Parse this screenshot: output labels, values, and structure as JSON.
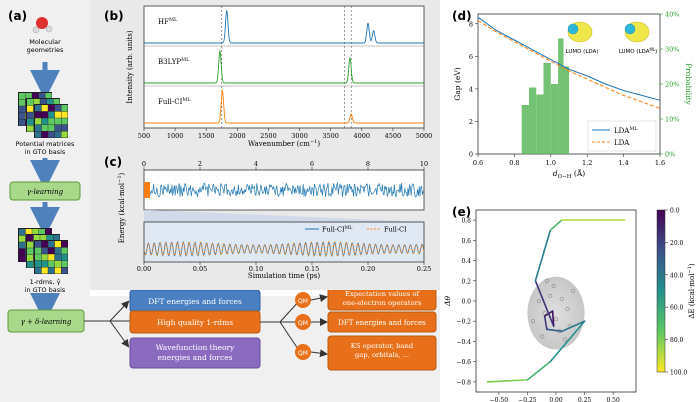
{
  "panel_labels": {
    "a": "(a)",
    "b": "(b)",
    "c": "(c)",
    "d": "(d)",
    "e": "(e)"
  },
  "workflow": {
    "molecular_geometries": "Molecular geometries",
    "potential_matrices": "Potential matrices in GTO basis",
    "gamma_learning": "γ-learning",
    "rdms": "1-rdms, γ̂ in GTO basis",
    "gamma_delta_learning": "γ + δ-learning",
    "dft_energies": "DFT energies and forces",
    "high_quality_rdms": "High quality 1-rdms",
    "wavefunction": "Wavefunction theory energies and forces",
    "qm_label": "QM",
    "expectation_values": "Expectation values of one-electron operators",
    "dft_energies_2": "DFT energies and forces",
    "ks_operator": "KS operator, band gap, orbitals, ..."
  },
  "colors": {
    "blue": "#1f77b4",
    "orange": "#ff7f0e",
    "green": "#2ca02c",
    "box_blue": "#4a7fc1",
    "box_orange": "#e8701a",
    "box_purple": "#8a6bbf",
    "box_green": "#a8d88a",
    "arrow_blue": "#4f81bd",
    "bar_green": "#5cb85c"
  },
  "chart_data": [
    {
      "panel": "b",
      "type": "line",
      "xlabel": "Wavenumber (cm⁻¹)",
      "ylabel": "Intensity (arb. units)",
      "xlim": [
        500,
        5000
      ],
      "x_ticks": [
        "500",
        "1000",
        "1500",
        "2000",
        "2500",
        "3000",
        "3500",
        "4000",
        "4500",
        "5000"
      ],
      "dashed_lines_x": [
        1750,
        3720,
        3830
      ],
      "series": [
        {
          "name": "HF^ML",
          "label_main": "HF",
          "label_sup": "ML",
          "color": "#1f77b4",
          "peaks": [
            {
              "x": 1830,
              "h": 1.0
            },
            {
              "x": 4100,
              "h": 0.62
            },
            {
              "x": 4190,
              "h": 0.38
            }
          ]
        },
        {
          "name": "B3LYP^ML",
          "label_main": "B3LYP",
          "label_sup": "ML",
          "color": "#2ca02c",
          "peaks": [
            {
              "x": 1720,
              "h": 1.0
            },
            {
              "x": 3810,
              "h": 0.78
            }
          ]
        },
        {
          "name": "Full-CI^ML",
          "label_main": "Full-CI",
          "label_sup": "ML",
          "color": "#ff7f0e",
          "peaks": [
            {
              "x": 1760,
              "h": 1.0
            },
            {
              "x": 3830,
              "h": 0.28
            }
          ]
        }
      ]
    },
    {
      "panel": "c",
      "type": "line",
      "xlabel": "Simulation time (ps)",
      "ylabel": "Energy (kcal·mol⁻¹)",
      "top_axis_ticks": [
        "0",
        "2",
        "4",
        "6",
        "8",
        "10"
      ],
      "bottom_axis_ticks": [
        "0.00",
        "0.05",
        "0.10",
        "0.15",
        "0.20",
        "0.25"
      ],
      "xlim_top": [
        0,
        10
      ],
      "xlim_bottom": [
        0,
        0.25
      ],
      "legend": [
        {
          "label_main": "Full-CI",
          "label_sup": "ML",
          "color": "#1f77b4",
          "style": "solid"
        },
        {
          "label_main": "Full-CI",
          "label_sup": "",
          "color": "#ff7f0e",
          "style": "dashed"
        }
      ],
      "oscillation_periods_ps": 0.0052
    },
    {
      "panel": "d",
      "type": "line",
      "xlabel_main": "d",
      "xlabel_sub": "O−H",
      "xlabel_unit": "(Å)",
      "ylabel_left": "Gap (eV)",
      "ylabel_right": "Probability",
      "xlim": [
        0.6,
        1.6
      ],
      "ylim_left": [
        0,
        8.6
      ],
      "ylim_right": [
        0,
        40
      ],
      "x_ticks": [
        "0.6",
        "0.8",
        "1.0",
        "1.2",
        "1.4",
        "1.6"
      ],
      "y_left_ticks": [
        "0",
        "2",
        "4",
        "6",
        "8"
      ],
      "y_right_ticks": [
        "0%",
        "10%",
        "20%",
        "30%",
        "40%"
      ],
      "series": [
        {
          "name": "LDA^ML",
          "label_main": "LDA",
          "label_sup": "ML",
          "color": "#1f77b4",
          "style": "solid",
          "x": [
            0.6,
            0.7,
            0.8,
            0.9,
            1.0,
            1.1,
            1.2,
            1.3,
            1.4,
            1.5,
            1.6
          ],
          "y": [
            8.4,
            7.6,
            7.0,
            6.4,
            5.8,
            5.2,
            4.8,
            4.3,
            3.9,
            3.6,
            3.3
          ]
        },
        {
          "name": "LDA",
          "label_main": "LDA",
          "label_sup": "",
          "color": "#ff7f0e",
          "style": "dashed",
          "x": [
            0.6,
            0.7,
            0.8,
            0.9,
            1.0,
            1.1,
            1.2,
            1.3,
            1.4,
            1.5,
            1.6
          ],
          "y": [
            8.2,
            7.5,
            6.9,
            6.3,
            5.7,
            5.1,
            4.6,
            4.1,
            3.6,
            3.2,
            2.8
          ]
        }
      ],
      "histogram": {
        "color": "#5cb85c",
        "bins": [
          [
            0.84,
            0.88,
            14
          ],
          [
            0.88,
            0.92,
            19
          ],
          [
            0.92,
            0.96,
            17
          ],
          [
            0.96,
            1.0,
            26
          ],
          [
            1.0,
            1.04,
            20
          ],
          [
            1.04,
            1.07,
            33
          ],
          [
            1.07,
            1.1,
            25
          ]
        ]
      },
      "insets": [
        {
          "label": "LUMO (LDA)"
        },
        {
          "label_main": "LUMO (LDA",
          "label_sup": "ML",
          "label_end": ")"
        }
      ]
    },
    {
      "panel": "e",
      "type": "line",
      "xlabel_main": "Δr",
      "xlabel_unit": "(Å)",
      "ylabel": "Δθ",
      "xlim": [
        -0.7,
        0.7
      ],
      "ylim": [
        -0.9,
        0.9
      ],
      "x_ticks": [
        "−0.50",
        "−0.25",
        "0.00",
        "0.25",
        "0.50"
      ],
      "y_ticks": [
        "0.8",
        "0.6",
        "0.4",
        "0.2",
        "0.0",
        "−0.2",
        "−0.4",
        "−0.6",
        "−0.8"
      ],
      "colorbar_label": "ΔE (kcal·mol⁻¹)",
      "colorbar_ticks": [
        "0.0",
        "20.0",
        "40.0",
        "60.0",
        "80.0",
        "100.0"
      ],
      "path": [
        {
          "x": -0.6,
          "y": -0.8,
          "e": 85
        },
        {
          "x": -0.25,
          "y": -0.78,
          "e": 75
        },
        {
          "x": -0.05,
          "y": -0.6,
          "e": 55
        },
        {
          "x": 0.25,
          "y": -0.2,
          "e": 45
        },
        {
          "x": 0.05,
          "y": -0.3,
          "e": 35
        },
        {
          "x": -0.08,
          "y": -0.28,
          "e": 25
        },
        {
          "x": -0.1,
          "y": -0.15,
          "e": 10
        },
        {
          "x": -0.03,
          "y": -0.1,
          "e": 5
        },
        {
          "x": -0.02,
          "y": -0.25,
          "e": 3
        },
        {
          "x": -0.18,
          "y": 0.2,
          "e": 30
        },
        {
          "x": -0.05,
          "y": 0.7,
          "e": 55
        },
        {
          "x": 0.05,
          "y": 0.8,
          "e": 80
        },
        {
          "x": 0.6,
          "y": 0.8,
          "e": 98
        }
      ],
      "scatter": [
        {
          "x": -0.15,
          "y": 0.0
        },
        {
          "x": -0.05,
          "y": 0.05
        },
        {
          "x": 0.05,
          "y": 0.02
        },
        {
          "x": -0.1,
          "y": -0.12
        },
        {
          "x": 0.1,
          "y": -0.08
        },
        {
          "x": -0.2,
          "y": -0.2
        },
        {
          "x": 0.0,
          "y": -0.18
        },
        {
          "x": 0.12,
          "y": -0.25
        },
        {
          "x": -0.12,
          "y": -0.35
        },
        {
          "x": 0.08,
          "y": -0.38
        },
        {
          "x": -0.02,
          "y": 0.15
        },
        {
          "x": 0.15,
          "y": 0.1
        },
        {
          "x": -0.08,
          "y": 0.2
        },
        {
          "x": 0.03,
          "y": -0.3
        }
      ]
    }
  ]
}
